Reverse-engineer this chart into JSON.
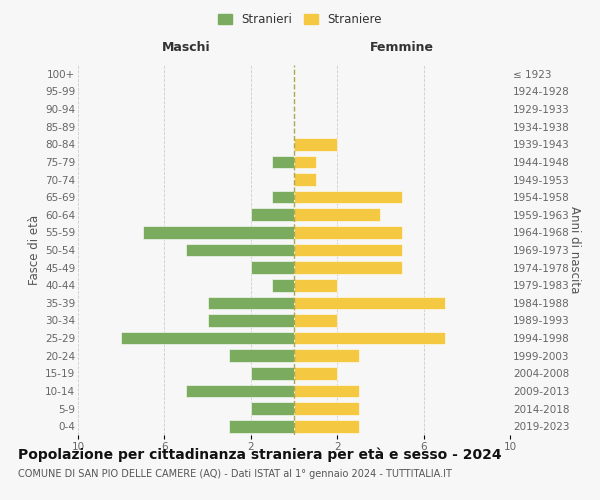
{
  "age_groups": [
    "0-4",
    "5-9",
    "10-14",
    "15-19",
    "20-24",
    "25-29",
    "30-34",
    "35-39",
    "40-44",
    "45-49",
    "50-54",
    "55-59",
    "60-64",
    "65-69",
    "70-74",
    "75-79",
    "80-84",
    "85-89",
    "90-94",
    "95-99",
    "100+"
  ],
  "birth_years": [
    "2019-2023",
    "2014-2018",
    "2009-2013",
    "2004-2008",
    "1999-2003",
    "1994-1998",
    "1989-1993",
    "1984-1988",
    "1979-1983",
    "1974-1978",
    "1969-1973",
    "1964-1968",
    "1959-1963",
    "1954-1958",
    "1949-1953",
    "1944-1948",
    "1939-1943",
    "1934-1938",
    "1929-1933",
    "1924-1928",
    "≤ 1923"
  ],
  "males": [
    3,
    2,
    5,
    2,
    3,
    8,
    4,
    4,
    1,
    2,
    5,
    7,
    2,
    1,
    0,
    1,
    0,
    0,
    0,
    0,
    0
  ],
  "females": [
    3,
    3,
    3,
    2,
    3,
    7,
    2,
    7,
    2,
    5,
    5,
    5,
    4,
    5,
    1,
    1,
    2,
    0,
    0,
    0,
    0
  ],
  "male_color": "#7bab5f",
  "female_color": "#f5c842",
  "title": "Popolazione per cittadinanza straniera per età e sesso - 2024",
  "subtitle": "COMUNE DI SAN PIO DELLE CAMERE (AQ) - Dati ISTAT al 1° gennaio 2024 - TUTTITALIA.IT",
  "ylabel_left": "Fasce di età",
  "ylabel_right": "Anni di nascita",
  "xlabel_left": "Maschi",
  "xlabel_right": "Femmine",
  "legend_male": "Stranieri",
  "legend_female": "Straniere",
  "xlim": 10,
  "background_color": "#f7f7f7",
  "grid_color": "#cccccc",
  "title_fontsize": 10,
  "subtitle_fontsize": 7,
  "label_fontsize": 8.5,
  "tick_fontsize": 7.5,
  "header_fontsize": 9
}
